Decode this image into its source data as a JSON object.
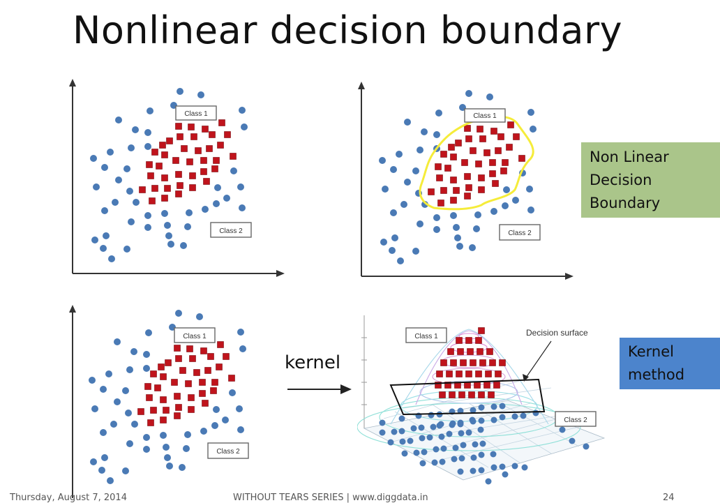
{
  "slide": {
    "title": "Nonlinear decision boundary",
    "notes": {
      "nonlinear_lines": [
        "Non Linear",
        "Decision",
        "Boundary"
      ],
      "kernel_method_lines": [
        "Kernel",
        "method"
      ]
    },
    "kernel_arrow_label": "kernel",
    "surface_label": "Decision surface",
    "class1_label": "Class 1",
    "class2_label": "Class 2",
    "footer": {
      "date": "Thursday, August 7, 2014",
      "series": "WITHOUT TEARS SERIES | www.diggdata.in",
      "page": "24"
    }
  },
  "colors": {
    "circle": "#4a7ab5",
    "square": "#c0141c",
    "boundary": "#f5ec3a",
    "green_note": "#aac58a",
    "blue_note": "#4c84cc"
  }
}
